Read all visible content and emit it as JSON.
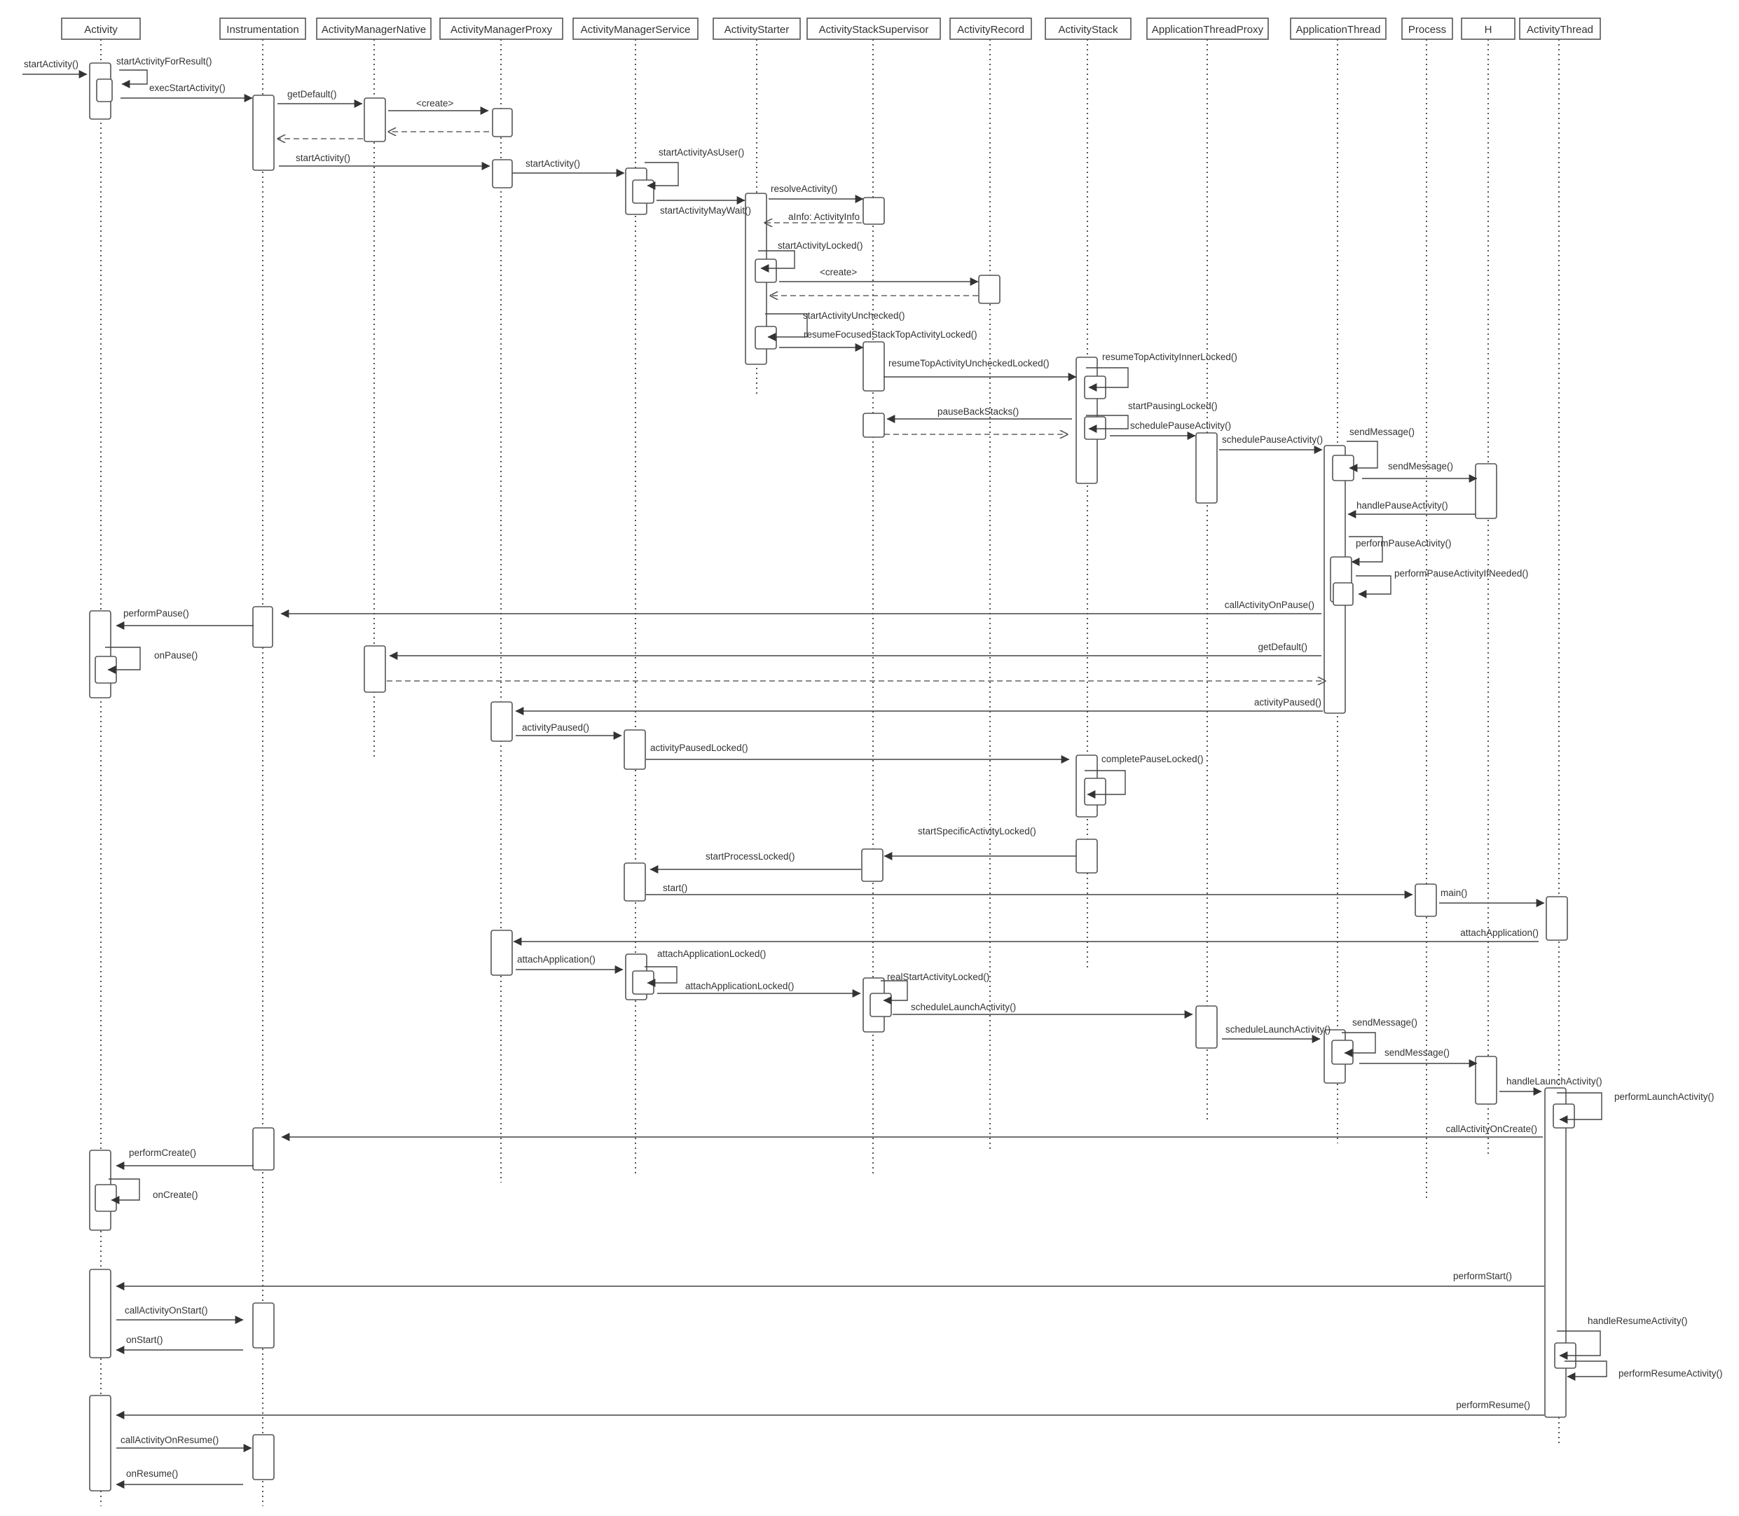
{
  "participants": [
    {
      "id": "activity",
      "label": "Activity"
    },
    {
      "id": "instr",
      "label": "Instrumentation"
    },
    {
      "id": "amn",
      "label": "ActivityManagerNative"
    },
    {
      "id": "amp",
      "label": "ActivityManagerProxy"
    },
    {
      "id": "ams",
      "label": "ActivityManagerService"
    },
    {
      "id": "starter",
      "label": "ActivityStarter"
    },
    {
      "id": "sup",
      "label": "ActivityStackSupervisor"
    },
    {
      "id": "rec",
      "label": "ActivityRecord"
    },
    {
      "id": "stack",
      "label": "ActivityStack"
    },
    {
      "id": "atp",
      "label": "ApplicationThreadProxy"
    },
    {
      "id": "at",
      "label": "ApplicationThread"
    },
    {
      "id": "proc",
      "label": "Process"
    },
    {
      "id": "h",
      "label": "H"
    },
    {
      "id": "athread",
      "label": "ActivityThread"
    }
  ],
  "entry_label": "startActivity()",
  "messages": [
    {
      "from": "activity",
      "to": "activity",
      "label": "startActivityForResult()",
      "kind": "self"
    },
    {
      "from": "activity",
      "to": "instr",
      "label": "execStartActivity()",
      "kind": "sync"
    },
    {
      "from": "instr",
      "to": "amn",
      "label": "getDefault()",
      "kind": "sync"
    },
    {
      "from": "amn",
      "to": "amp",
      "label": "<create>",
      "kind": "sync"
    },
    {
      "from": "amp",
      "to": "amn",
      "label": "",
      "kind": "return"
    },
    {
      "from": "amn",
      "to": "instr",
      "label": "",
      "kind": "return"
    },
    {
      "from": "instr",
      "to": "amp",
      "label": "startActivity()",
      "kind": "sync"
    },
    {
      "from": "amp",
      "to": "ams",
      "label": "startActivity()",
      "kind": "sync"
    },
    {
      "from": "ams",
      "to": "ams",
      "label": "startActivityAsUser()",
      "kind": "self"
    },
    {
      "from": "ams",
      "to": "starter",
      "label": "startActivityMayWait()",
      "kind": "sync"
    },
    {
      "from": "starter",
      "to": "sup",
      "label": "resolveActivity()",
      "kind": "sync"
    },
    {
      "from": "sup",
      "to": "starter",
      "label": "aInfo: ActivityInfo",
      "kind": "return"
    },
    {
      "from": "starter",
      "to": "starter",
      "label": "startActivityLocked()",
      "kind": "self"
    },
    {
      "from": "starter",
      "to": "rec",
      "label": "<create>",
      "kind": "sync"
    },
    {
      "from": "rec",
      "to": "starter",
      "label": "",
      "kind": "return"
    },
    {
      "from": "starter",
      "to": "starter",
      "label": "startActivityUnchecked()",
      "kind": "self"
    },
    {
      "from": "starter",
      "to": "sup",
      "label": "resumeFocusedStackTopActivityLocked()",
      "kind": "sync"
    },
    {
      "from": "sup",
      "to": "stack",
      "label": "resumeTopActivityUncheckedLocked()",
      "kind": "sync"
    },
    {
      "from": "stack",
      "to": "stack",
      "label": "resumeTopActivityInnerLocked()",
      "kind": "self"
    },
    {
      "from": "stack",
      "to": "sup",
      "label": "pauseBackStacks()",
      "kind": "sync"
    },
    {
      "from": "sup",
      "to": "stack",
      "label": "",
      "kind": "return"
    },
    {
      "from": "stack",
      "to": "stack",
      "label": "startPausingLocked()",
      "kind": "self"
    },
    {
      "from": "stack",
      "to": "atp",
      "label": "schedulePauseActivity()",
      "kind": "sync"
    },
    {
      "from": "atp",
      "to": "at",
      "label": "schedulePauseActivity()",
      "kind": "sync"
    },
    {
      "from": "at",
      "to": "at",
      "label": "sendMessage()",
      "kind": "self"
    },
    {
      "from": "at",
      "to": "h",
      "label": "sendMessage()",
      "kind": "sync"
    },
    {
      "from": "h",
      "to": "at",
      "label": "handlePauseActivity()",
      "kind": "sync"
    },
    {
      "from": "at",
      "to": "at",
      "label": "performPauseActivity()",
      "kind": "self"
    },
    {
      "from": "at",
      "to": "at",
      "label": "performPauseActivityIfNeeded()",
      "kind": "self"
    },
    {
      "from": "at",
      "to": "instr",
      "label": "callActivityOnPause()",
      "kind": "sync"
    },
    {
      "from": "instr",
      "to": "activity",
      "label": "performPause()",
      "kind": "sync"
    },
    {
      "from": "activity",
      "to": "activity",
      "label": "onPause()",
      "kind": "self"
    },
    {
      "from": "at",
      "to": "amn",
      "label": "getDefault()",
      "kind": "sync"
    },
    {
      "from": "amn",
      "to": "at",
      "label": "",
      "kind": "return"
    },
    {
      "from": "at",
      "to": "amp",
      "label": "activityPaused()",
      "kind": "sync"
    },
    {
      "from": "amp",
      "to": "ams",
      "label": "activityPaused()",
      "kind": "sync"
    },
    {
      "from": "ams",
      "to": "stack",
      "label": "activityPausedLocked()",
      "kind": "sync"
    },
    {
      "from": "stack",
      "to": "stack",
      "label": "completePauseLocked()",
      "kind": "self"
    },
    {
      "from": "stack",
      "to": "sup",
      "label": "startSpecificActivityLocked()",
      "kind": "sync"
    },
    {
      "from": "sup",
      "to": "ams",
      "label": "startProcessLocked()",
      "kind": "sync"
    },
    {
      "from": "ams",
      "to": "proc",
      "label": "start()",
      "kind": "sync"
    },
    {
      "from": "proc",
      "to": "athread",
      "label": "main()",
      "kind": "sync"
    },
    {
      "from": "athread",
      "to": "amp",
      "label": "attachApplication()",
      "kind": "sync"
    },
    {
      "from": "amp",
      "to": "ams",
      "label": "attachApplication()",
      "kind": "sync"
    },
    {
      "from": "ams",
      "to": "ams",
      "label": "attachApplicationLocked()",
      "kind": "self"
    },
    {
      "from": "ams",
      "to": "sup",
      "label": "attachApplicationLocked()",
      "kind": "sync"
    },
    {
      "from": "sup",
      "to": "sup",
      "label": "realStartActivityLocked()",
      "kind": "self"
    },
    {
      "from": "sup",
      "to": "atp",
      "label": "scheduleLaunchActivity()",
      "kind": "sync"
    },
    {
      "from": "atp",
      "to": "at",
      "label": "scheduleLaunchActivity()",
      "kind": "sync"
    },
    {
      "from": "at",
      "to": "at",
      "label": "sendMessage()",
      "kind": "self"
    },
    {
      "from": "at",
      "to": "h",
      "label": "sendMessage()",
      "kind": "sync"
    },
    {
      "from": "h",
      "to": "athread",
      "label": "handleLaunchActivity()",
      "kind": "sync"
    },
    {
      "from": "athread",
      "to": "athread",
      "label": "performLaunchActivity()",
      "kind": "self"
    },
    {
      "from": "athread",
      "to": "instr",
      "label": "callActivityOnCreate()",
      "kind": "sync"
    },
    {
      "from": "instr",
      "to": "activity",
      "label": "performCreate()",
      "kind": "sync"
    },
    {
      "from": "activity",
      "to": "activity",
      "label": "onCreate()",
      "kind": "self"
    },
    {
      "from": "athread",
      "to": "activity",
      "label": "performStart()",
      "kind": "sync"
    },
    {
      "from": "activity",
      "to": "instr",
      "label": "callActivityOnStart()",
      "kind": "sync"
    },
    {
      "from": "instr",
      "to": "activity",
      "label": "onStart()",
      "kind": "sync"
    },
    {
      "from": "athread",
      "to": "athread",
      "label": "handleResumeActivity()",
      "kind": "self"
    },
    {
      "from": "athread",
      "to": "athread",
      "label": "performResumeActivity()",
      "kind": "self"
    },
    {
      "from": "athread",
      "to": "activity",
      "label": "performResume()",
      "kind": "sync"
    },
    {
      "from": "activity",
      "to": "instr",
      "label": "callActivityOnResume()",
      "kind": "sync"
    },
    {
      "from": "instr",
      "to": "activity",
      "label": "onResume()",
      "kind": "sync"
    }
  ]
}
